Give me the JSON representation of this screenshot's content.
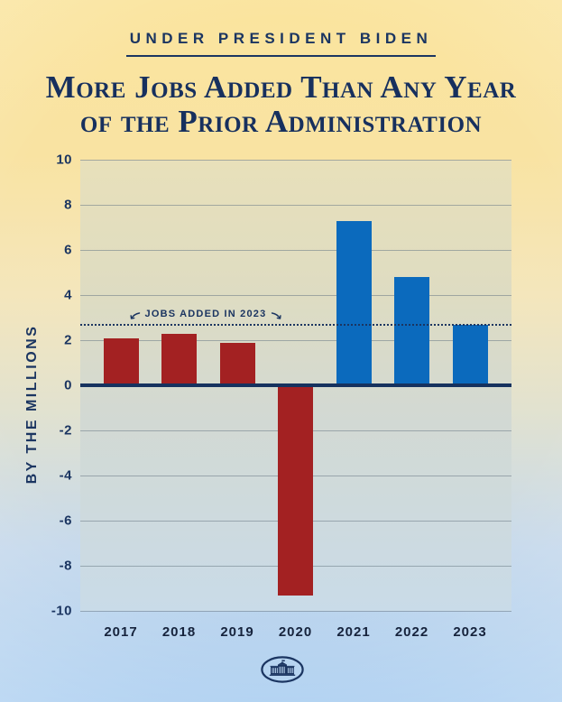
{
  "header": {
    "kicker": "UNDER PRESIDENT BIDEN",
    "title_line1": "More Jobs Added Than Any Year",
    "title_line2": "of the Prior Administration"
  },
  "chart_data": {
    "type": "bar",
    "categories": [
      "2017",
      "2018",
      "2019",
      "2020",
      "2021",
      "2022",
      "2023"
    ],
    "values": [
      2.1,
      2.3,
      1.9,
      -9.3,
      7.3,
      4.8,
      2.7
    ],
    "bar_colors": [
      "#A32122",
      "#A32122",
      "#A32122",
      "#A32122",
      "#0B6ABD",
      "#0B6ABD",
      "#0B6ABD"
    ],
    "ylabel": "BY THE MILLIONS",
    "xlabel": "",
    "ylim": [
      -10,
      10
    ],
    "yticks": [
      10,
      8,
      6,
      4,
      2,
      0,
      -2,
      -4,
      -6,
      -8,
      -10
    ],
    "grid": true,
    "legend": "none",
    "reference_line": {
      "value": 2.7,
      "label": "JOBS ADDED IN 2023"
    }
  },
  "colors": {
    "navy": "#1B3561",
    "bar_negative_era": "#A32122",
    "bar_biden_era": "#0B6ABD",
    "background_top": "#F9E3A2",
    "background_bottom": "#A9CDF0"
  },
  "footer": {
    "logo": "white-house-seal"
  }
}
